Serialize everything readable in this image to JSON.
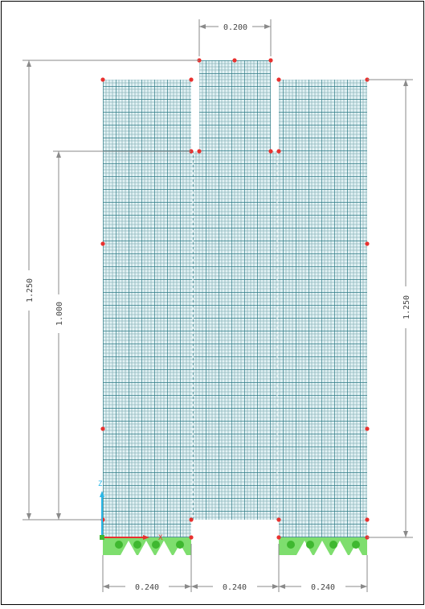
{
  "colors": {
    "mesh_fill": "#e3f3f5",
    "mesh_line_fine": "#8fb6bc",
    "mesh_line_major": "#2e7a85",
    "node": "#e8312f",
    "support": "#7ede6e",
    "support_node": "#3fb830",
    "dimension": "#8a8a8a",
    "frame": "#000000"
  },
  "dimensions": {
    "top_width": "0.200",
    "left_height_outer": "1.250",
    "left_height_inner": "1.000",
    "right_height": "1.250",
    "bottom_left_width": "0.240",
    "bottom_mid_width": "0.240",
    "bottom_right_width": "0.240"
  },
  "axes": {
    "z_label": "Z",
    "x_label": "X"
  }
}
